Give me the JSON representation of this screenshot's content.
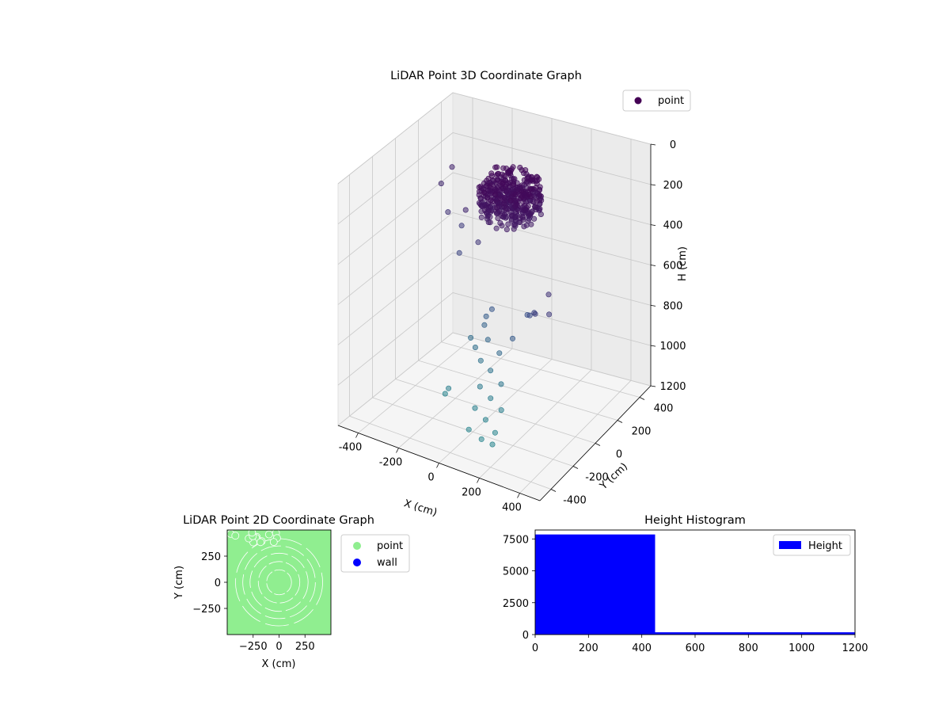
{
  "chart_data": [
    {
      "type": "scatter",
      "title": "LiDAR Point 3D Coordinate Graph",
      "xlabel": "X (cm)",
      "ylabel": "Y (cm)",
      "zlabel": "H (cm)",
      "xlim": [
        -500,
        500
      ],
      "ylim": [
        -500,
        500
      ],
      "zlim": [
        1200,
        0
      ],
      "z_axis_inverted": true,
      "xticks": [
        "-400",
        "-200",
        "0",
        "200",
        "400"
      ],
      "yticks": [
        "-400",
        "-200",
        "0",
        "200",
        "400"
      ],
      "zticks": [
        "0",
        "200",
        "400",
        "600",
        "800",
        "1000",
        "1200"
      ],
      "grid": true,
      "legend_position": "top-right",
      "colormap": "viridis",
      "series": [
        {
          "name": "point",
          "color": "#440154",
          "cluster": {
            "center": [
              40,
              60,
              130
            ],
            "radius": 140,
            "h_range": [
              60,
              220
            ]
          },
          "points": [
            [
              -420,
              260,
              320
            ],
            [
              -400,
              320,
              260
            ],
            [
              -340,
              180,
              400
            ],
            [
              -300,
              230,
              480
            ],
            [
              -260,
              140,
              560
            ],
            [
              -200,
              90,
              300
            ],
            [
              -150,
              200,
              350
            ],
            [
              -120,
              60,
              420
            ],
            [
              350,
              -150,
              400
            ],
            [
              380,
              -200,
              460
            ],
            [
              300,
              -180,
              500
            ],
            [
              250,
              -100,
              560
            ],
            [
              200,
              -50,
              620
            ],
            [
              160,
              0,
              660
            ],
            [
              -40,
              40,
              720
            ],
            [
              -80,
              60,
              780
            ],
            [
              -100,
              80,
              840
            ],
            [
              -60,
              40,
              880
            ],
            [
              20,
              0,
              900
            ],
            [
              120,
              -60,
              760
            ],
            [
              -180,
              100,
              940
            ],
            [
              -140,
              70,
              960
            ],
            [
              -90,
              30,
              990
            ],
            [
              -30,
              10,
              1010
            ],
            [
              40,
              -20,
              1040
            ],
            [
              -60,
              -30,
              1080
            ],
            [
              10,
              -60,
              1100
            ],
            [
              80,
              -90,
              1120
            ],
            [
              -40,
              -110,
              1140
            ],
            [
              30,
              -140,
              1160
            ],
            [
              100,
              -180,
              1180
            ],
            [
              -20,
              -200,
              1195
            ],
            [
              60,
              -230,
              1200
            ],
            [
              -200,
              -60,
              1120
            ],
            [
              -240,
              -20,
              1180
            ],
            [
              120,
              -240,
              1200
            ]
          ]
        }
      ]
    },
    {
      "type": "scatter",
      "title": "LiDAR Point 2D Coordinate Graph",
      "xlabel": "X (cm)",
      "ylabel": "Y (cm)",
      "xlim": [
        -500,
        500
      ],
      "ylim": [
        -500,
        500
      ],
      "xticks": [
        "−250",
        "0",
        "250"
      ],
      "yticks": [
        "−250",
        "0",
        "250"
      ],
      "legend_position": "outside-right",
      "series": [
        {
          "name": "point",
          "color": "#90ee90",
          "radius_range": [
            0,
            500
          ],
          "rings": [
            120,
            200,
            280,
            350,
            420
          ]
        },
        {
          "name": "wall",
          "color": "#0000ff",
          "points": []
        }
      ]
    },
    {
      "type": "bar",
      "title": "Height Histogram",
      "xlabel": "",
      "ylabel": "",
      "xlim": [
        0,
        1200
      ],
      "ylim": [
        0,
        8200
      ],
      "xticks": [
        "0",
        "200",
        "400",
        "600",
        "800",
        "1000",
        "1200"
      ],
      "yticks": [
        "0",
        "2500",
        "5000",
        "7500"
      ],
      "legend_position": "top-right",
      "series": [
        {
          "name": "Height",
          "color": "#0000ff",
          "bins": [
            [
              0,
              450,
              7850
            ],
            [
              450,
              1200,
              180
            ]
          ]
        }
      ]
    }
  ]
}
